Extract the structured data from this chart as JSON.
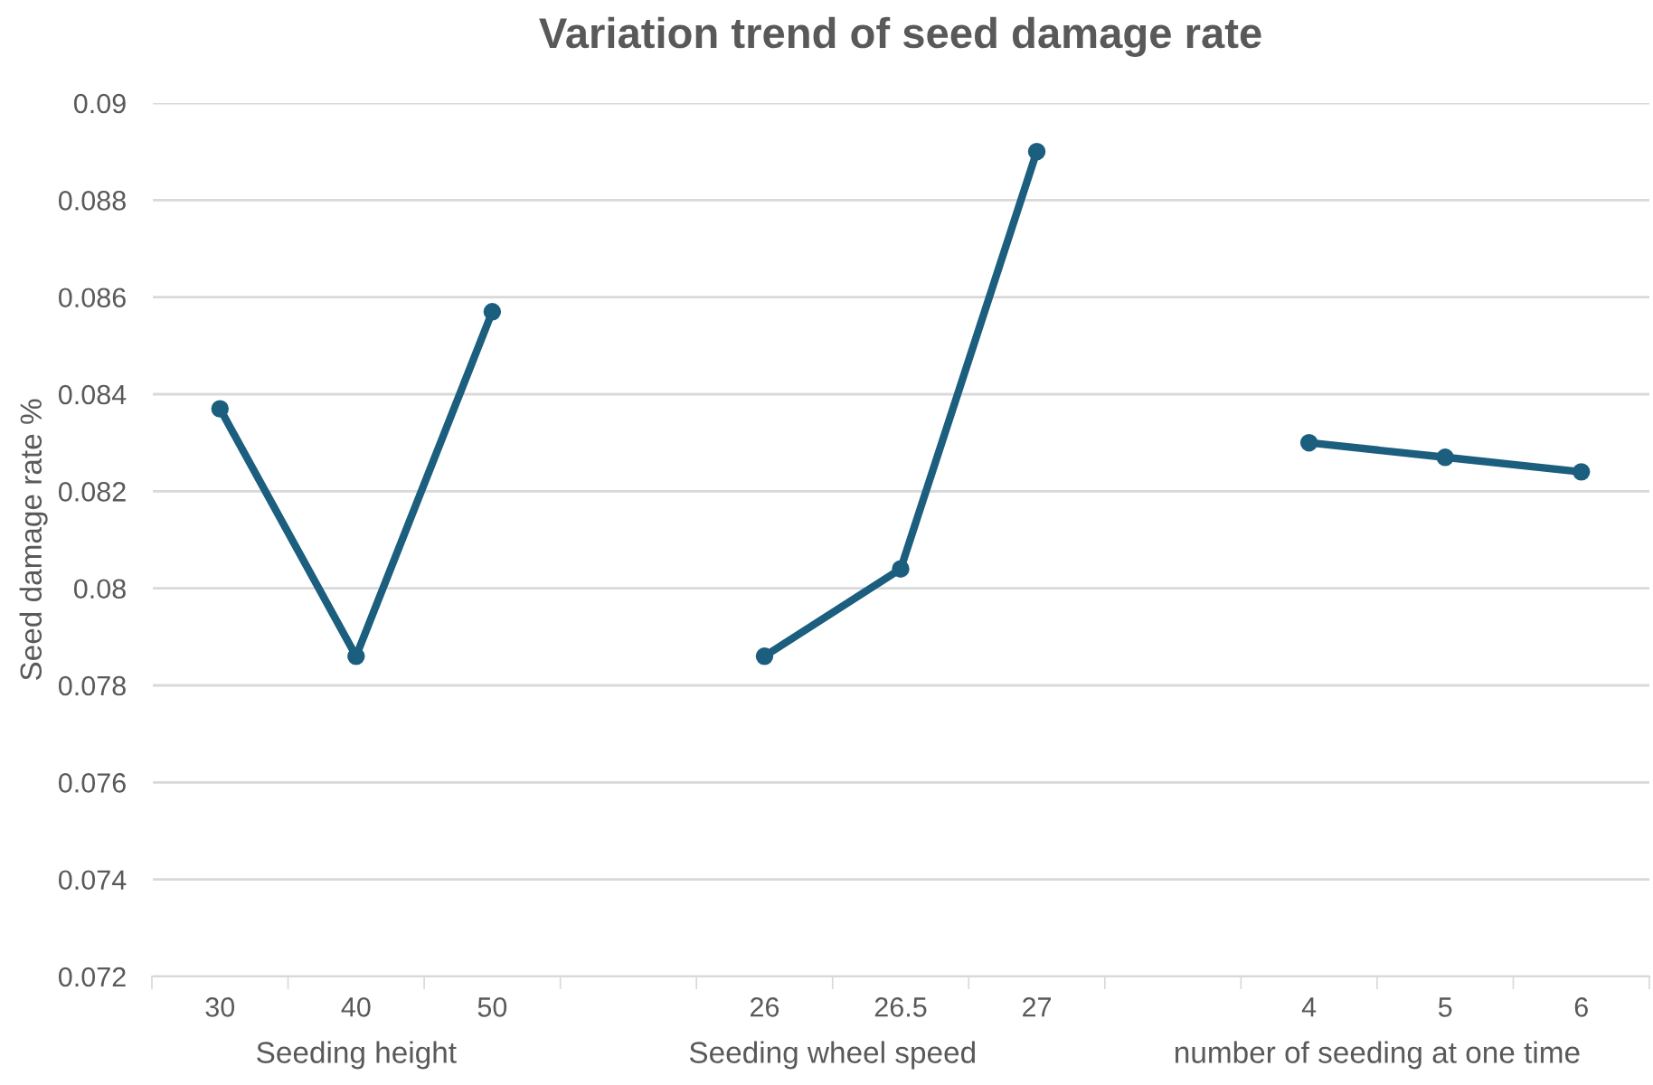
{
  "chart_data": {
    "type": "line",
    "title": "Variation trend of seed damage rate",
    "ylabel": "Seed damage rate %",
    "categories": [
      "30",
      "40",
      "50",
      null,
      "26",
      "26.5",
      "27",
      null,
      "4",
      "5",
      "6"
    ],
    "series": [
      {
        "color": "#1b5e7e",
        "values": [
          0.0837,
          0.0786,
          0.0857,
          null,
          0.0786,
          0.0804,
          0.089,
          null,
          0.083,
          0.0827,
          0.0824
        ]
      }
    ],
    "annotations": [
      "Seeding height",
      "Seeding wheel speed",
      "number of seeding at one time"
    ],
    "ylim": [
      0.072,
      0.09
    ],
    "yticks": [
      0.072,
      0.074,
      0.076,
      0.078,
      0.08,
      0.082,
      0.084,
      0.086,
      0.088,
      0.09
    ],
    "grid": "y",
    "marker": "circle",
    "line_style": "solid"
  }
}
